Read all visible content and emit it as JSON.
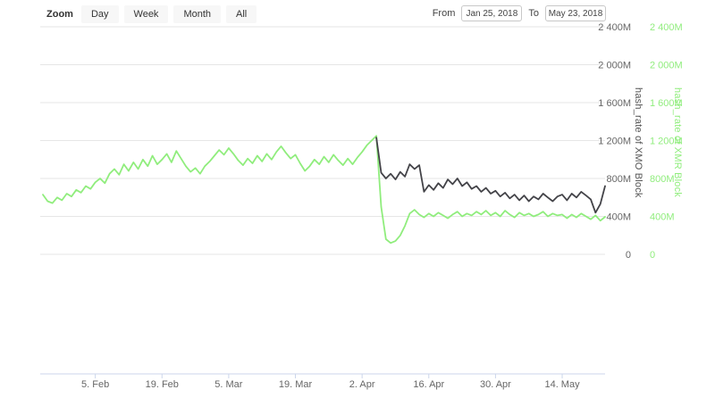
{
  "range_selector": {
    "zoom_label": "Zoom",
    "buttons": [
      {
        "id": "day",
        "label": "Day"
      },
      {
        "id": "week",
        "label": "Week"
      },
      {
        "id": "month",
        "label": "Month"
      },
      {
        "id": "all",
        "label": "All"
      }
    ],
    "from_label": "From",
    "from_value": "Jan 25, 2018",
    "to_label": "To",
    "to_value": "May 23, 2018"
  },
  "chart_data": {
    "type": "line",
    "title": "",
    "x_axis": {
      "start_date": "Jan 25, 2018",
      "end_date": "May 23, 2018",
      "domain_days": [
        0,
        118
      ],
      "tick_days": [
        11,
        25,
        39,
        53,
        67,
        81,
        95,
        109
      ],
      "tick_labels": [
        "5. Feb",
        "19. Feb",
        "5. Mar",
        "19. Mar",
        "2. Apr",
        "16. Apr",
        "30. Apr",
        "14. May"
      ]
    },
    "ylim": [
      0,
      2400
    ],
    "y_axes": [
      {
        "title": "hash_rate of XMO Block",
        "label_color": "#666666",
        "tick_values": [
          0,
          400,
          800,
          1200,
          1600,
          2000,
          2400
        ],
        "tick_labels": [
          "0",
          "400M",
          "800M",
          "1 200M",
          "1 600M",
          "2 000M",
          "2 400M"
        ]
      },
      {
        "title": "hash_rate of XMR Block",
        "label_color": "#90ed7d",
        "tick_values": [
          0,
          400,
          800,
          1200,
          1600,
          2000,
          2400
        ],
        "tick_labels": [
          "0",
          "400M",
          "800M",
          "1 200M",
          "1 600M",
          "2 000M",
          "2 400M"
        ]
      }
    ],
    "series": [
      {
        "name": "hash_rate of XMR Block",
        "color": "#90ed7d",
        "points": [
          [
            0,
            630
          ],
          [
            1,
            560
          ],
          [
            2,
            540
          ],
          [
            3,
            600
          ],
          [
            4,
            570
          ],
          [
            5,
            640
          ],
          [
            6,
            610
          ],
          [
            7,
            680
          ],
          [
            8,
            650
          ],
          [
            9,
            720
          ],
          [
            10,
            690
          ],
          [
            11,
            760
          ],
          [
            12,
            800
          ],
          [
            13,
            750
          ],
          [
            14,
            850
          ],
          [
            15,
            900
          ],
          [
            16,
            840
          ],
          [
            17,
            950
          ],
          [
            18,
            880
          ],
          [
            19,
            970
          ],
          [
            20,
            900
          ],
          [
            21,
            1000
          ],
          [
            22,
            930
          ],
          [
            23,
            1040
          ],
          [
            24,
            950
          ],
          [
            25,
            1000
          ],
          [
            26,
            1060
          ],
          [
            27,
            970
          ],
          [
            28,
            1090
          ],
          [
            29,
            1010
          ],
          [
            30,
            930
          ],
          [
            31,
            870
          ],
          [
            32,
            910
          ],
          [
            33,
            850
          ],
          [
            34,
            930
          ],
          [
            35,
            980
          ],
          [
            36,
            1040
          ],
          [
            37,
            1100
          ],
          [
            38,
            1050
          ],
          [
            39,
            1120
          ],
          [
            40,
            1060
          ],
          [
            41,
            990
          ],
          [
            42,
            940
          ],
          [
            43,
            1010
          ],
          [
            44,
            960
          ],
          [
            45,
            1040
          ],
          [
            46,
            980
          ],
          [
            47,
            1060
          ],
          [
            48,
            1000
          ],
          [
            49,
            1080
          ],
          [
            50,
            1140
          ],
          [
            51,
            1070
          ],
          [
            52,
            1010
          ],
          [
            53,
            1050
          ],
          [
            54,
            960
          ],
          [
            55,
            880
          ],
          [
            56,
            930
          ],
          [
            57,
            1000
          ],
          [
            58,
            950
          ],
          [
            59,
            1030
          ],
          [
            60,
            970
          ],
          [
            61,
            1050
          ],
          [
            62,
            990
          ],
          [
            63,
            940
          ],
          [
            64,
            1010
          ],
          [
            65,
            950
          ],
          [
            66,
            1020
          ],
          [
            67,
            1080
          ],
          [
            68,
            1150
          ],
          [
            69,
            1200
          ],
          [
            70,
            1250
          ],
          [
            71,
            500
          ],
          [
            72,
            160
          ],
          [
            73,
            120
          ],
          [
            74,
            140
          ],
          [
            75,
            200
          ],
          [
            76,
            300
          ],
          [
            77,
            430
          ],
          [
            78,
            470
          ],
          [
            79,
            420
          ],
          [
            80,
            390
          ],
          [
            81,
            430
          ],
          [
            82,
            400
          ],
          [
            83,
            440
          ],
          [
            84,
            410
          ],
          [
            85,
            380
          ],
          [
            86,
            420
          ],
          [
            87,
            450
          ],
          [
            88,
            400
          ],
          [
            89,
            430
          ],
          [
            90,
            410
          ],
          [
            91,
            450
          ],
          [
            92,
            420
          ],
          [
            93,
            460
          ],
          [
            94,
            410
          ],
          [
            95,
            440
          ],
          [
            96,
            400
          ],
          [
            97,
            460
          ],
          [
            98,
            420
          ],
          [
            99,
            390
          ],
          [
            100,
            440
          ],
          [
            101,
            410
          ],
          [
            102,
            430
          ],
          [
            103,
            400
          ],
          [
            104,
            420
          ],
          [
            105,
            450
          ],
          [
            106,
            400
          ],
          [
            107,
            430
          ],
          [
            108,
            410
          ],
          [
            109,
            420
          ],
          [
            110,
            380
          ],
          [
            111,
            420
          ],
          [
            112,
            390
          ],
          [
            113,
            430
          ],
          [
            114,
            400
          ],
          [
            115,
            370
          ],
          [
            116,
            410
          ],
          [
            117,
            355
          ],
          [
            118,
            395
          ]
        ]
      },
      {
        "name": "hash_rate of XMO Block",
        "color": "#434348",
        "points": [
          [
            70,
            1230
          ],
          [
            71,
            860
          ],
          [
            72,
            800
          ],
          [
            73,
            850
          ],
          [
            74,
            790
          ],
          [
            75,
            870
          ],
          [
            76,
            820
          ],
          [
            77,
            950
          ],
          [
            78,
            900
          ],
          [
            79,
            940
          ],
          [
            80,
            660
          ],
          [
            81,
            730
          ],
          [
            82,
            680
          ],
          [
            83,
            750
          ],
          [
            84,
            700
          ],
          [
            85,
            790
          ],
          [
            86,
            740
          ],
          [
            87,
            800
          ],
          [
            88,
            720
          ],
          [
            89,
            760
          ],
          [
            90,
            690
          ],
          [
            91,
            720
          ],
          [
            92,
            660
          ],
          [
            93,
            700
          ],
          [
            94,
            640
          ],
          [
            95,
            670
          ],
          [
            96,
            610
          ],
          [
            97,
            650
          ],
          [
            98,
            590
          ],
          [
            99,
            630
          ],
          [
            100,
            570
          ],
          [
            101,
            620
          ],
          [
            102,
            560
          ],
          [
            103,
            610
          ],
          [
            104,
            580
          ],
          [
            105,
            640
          ],
          [
            106,
            600
          ],
          [
            107,
            560
          ],
          [
            108,
            610
          ],
          [
            109,
            630
          ],
          [
            110,
            570
          ],
          [
            111,
            640
          ],
          [
            112,
            600
          ],
          [
            113,
            660
          ],
          [
            114,
            620
          ],
          [
            115,
            580
          ],
          [
            116,
            440
          ],
          [
            117,
            530
          ],
          [
            118,
            720
          ]
        ]
      }
    ],
    "colors": {
      "grid": "#e6e6e6",
      "axis_line": "#ccd6eb",
      "x_label": "#666666"
    },
    "legend": "none",
    "grid": "horizontal-only"
  }
}
